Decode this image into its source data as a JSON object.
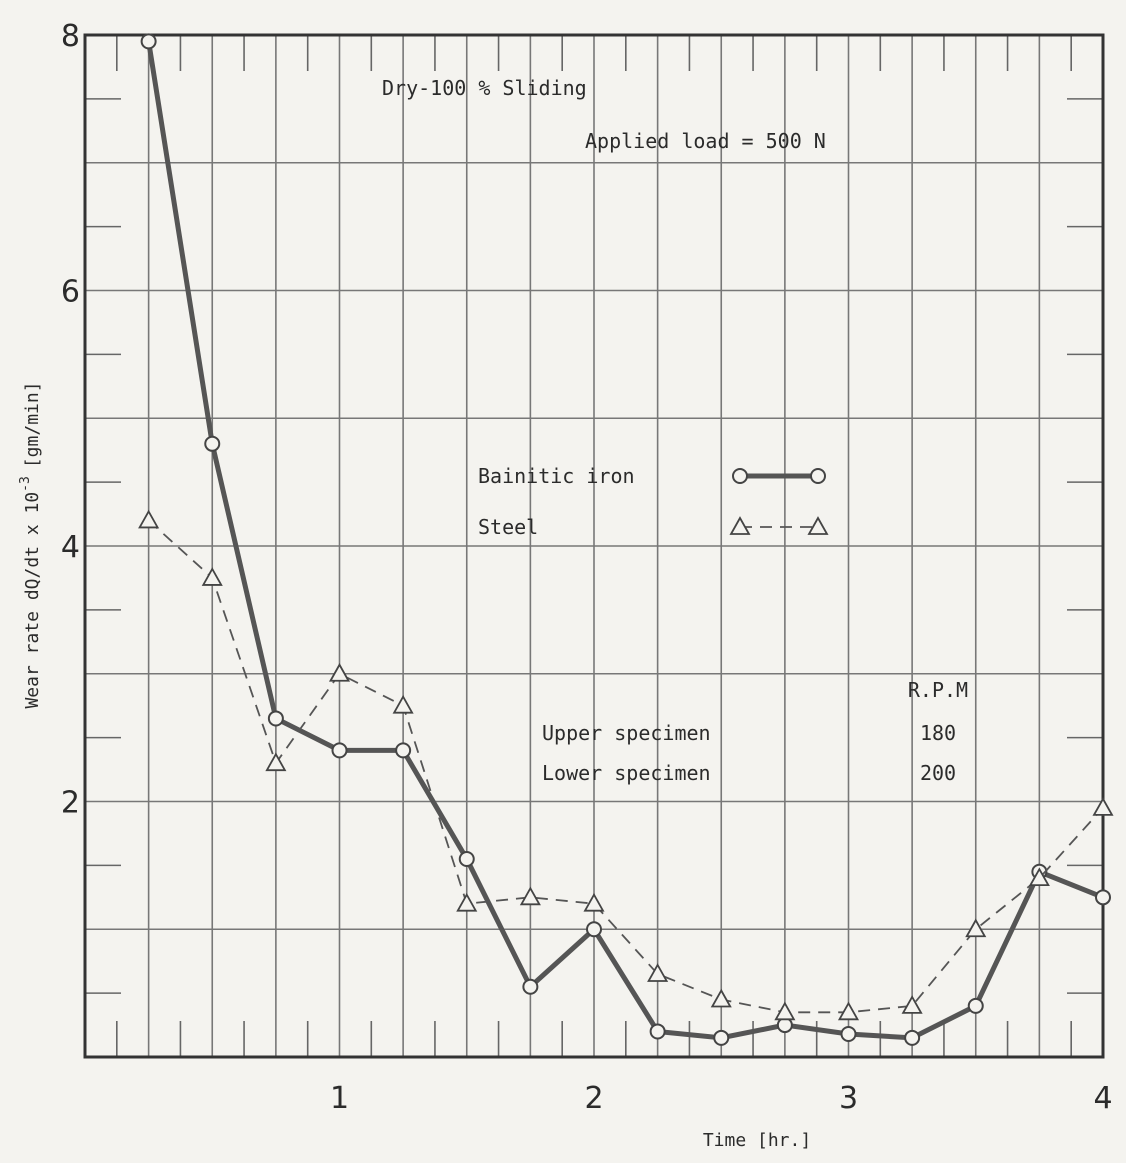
{
  "chart_data": {
    "type": "line",
    "xlabel": "Time [hr.]",
    "ylabel": "Wear rate   dQ/dt   x 10",
    "ylabel_exp": "-3",
    "ylabel_units": "[gm/min]",
    "xlim": [
      0,
      4
    ],
    "ylim": [
      0,
      8
    ],
    "x_ticks": [
      1,
      2,
      3,
      4
    ],
    "y_ticks": [
      2,
      4,
      6,
      8
    ],
    "grid": true,
    "annotations": {
      "condition": "Dry-100 % Sliding",
      "load": "Applied load = 500 N",
      "rpm_header": "R.P.M",
      "upper_label": "Upper specimen",
      "upper_value": "180",
      "lower_label": "Lower specimen",
      "lower_value": "200"
    },
    "series": [
      {
        "name": "Bainitic iron",
        "style": "solid",
        "marker": "circle",
        "color": "#555555",
        "points": [
          [
            0.25,
            7.95
          ],
          [
            0.5,
            4.8
          ],
          [
            0.75,
            2.65
          ],
          [
            1.0,
            2.4
          ],
          [
            1.25,
            2.4
          ],
          [
            1.5,
            1.55
          ],
          [
            1.75,
            0.55
          ],
          [
            2.0,
            1.0
          ],
          [
            2.25,
            0.2
          ],
          [
            2.5,
            0.15
          ],
          [
            2.75,
            0.25
          ],
          [
            3.0,
            0.18
          ],
          [
            3.25,
            0.15
          ],
          [
            3.5,
            0.4
          ],
          [
            3.75,
            1.45
          ],
          [
            4.0,
            1.25
          ]
        ]
      },
      {
        "name": "Steel",
        "style": "dashed",
        "marker": "triangle",
        "color": "#555555",
        "points": [
          [
            0.25,
            4.2
          ],
          [
            0.5,
            3.75
          ],
          [
            0.75,
            2.3
          ],
          [
            1.0,
            3.0
          ],
          [
            1.25,
            2.75
          ],
          [
            1.5,
            1.2
          ],
          [
            1.75,
            1.25
          ],
          [
            2.0,
            1.2
          ],
          [
            2.25,
            0.65
          ],
          [
            2.5,
            0.45
          ],
          [
            2.75,
            0.35
          ],
          [
            3.0,
            0.35
          ],
          [
            3.25,
            0.4
          ],
          [
            3.5,
            1.0
          ],
          [
            3.75,
            1.4
          ],
          [
            4.0,
            1.95
          ]
        ]
      }
    ]
  }
}
